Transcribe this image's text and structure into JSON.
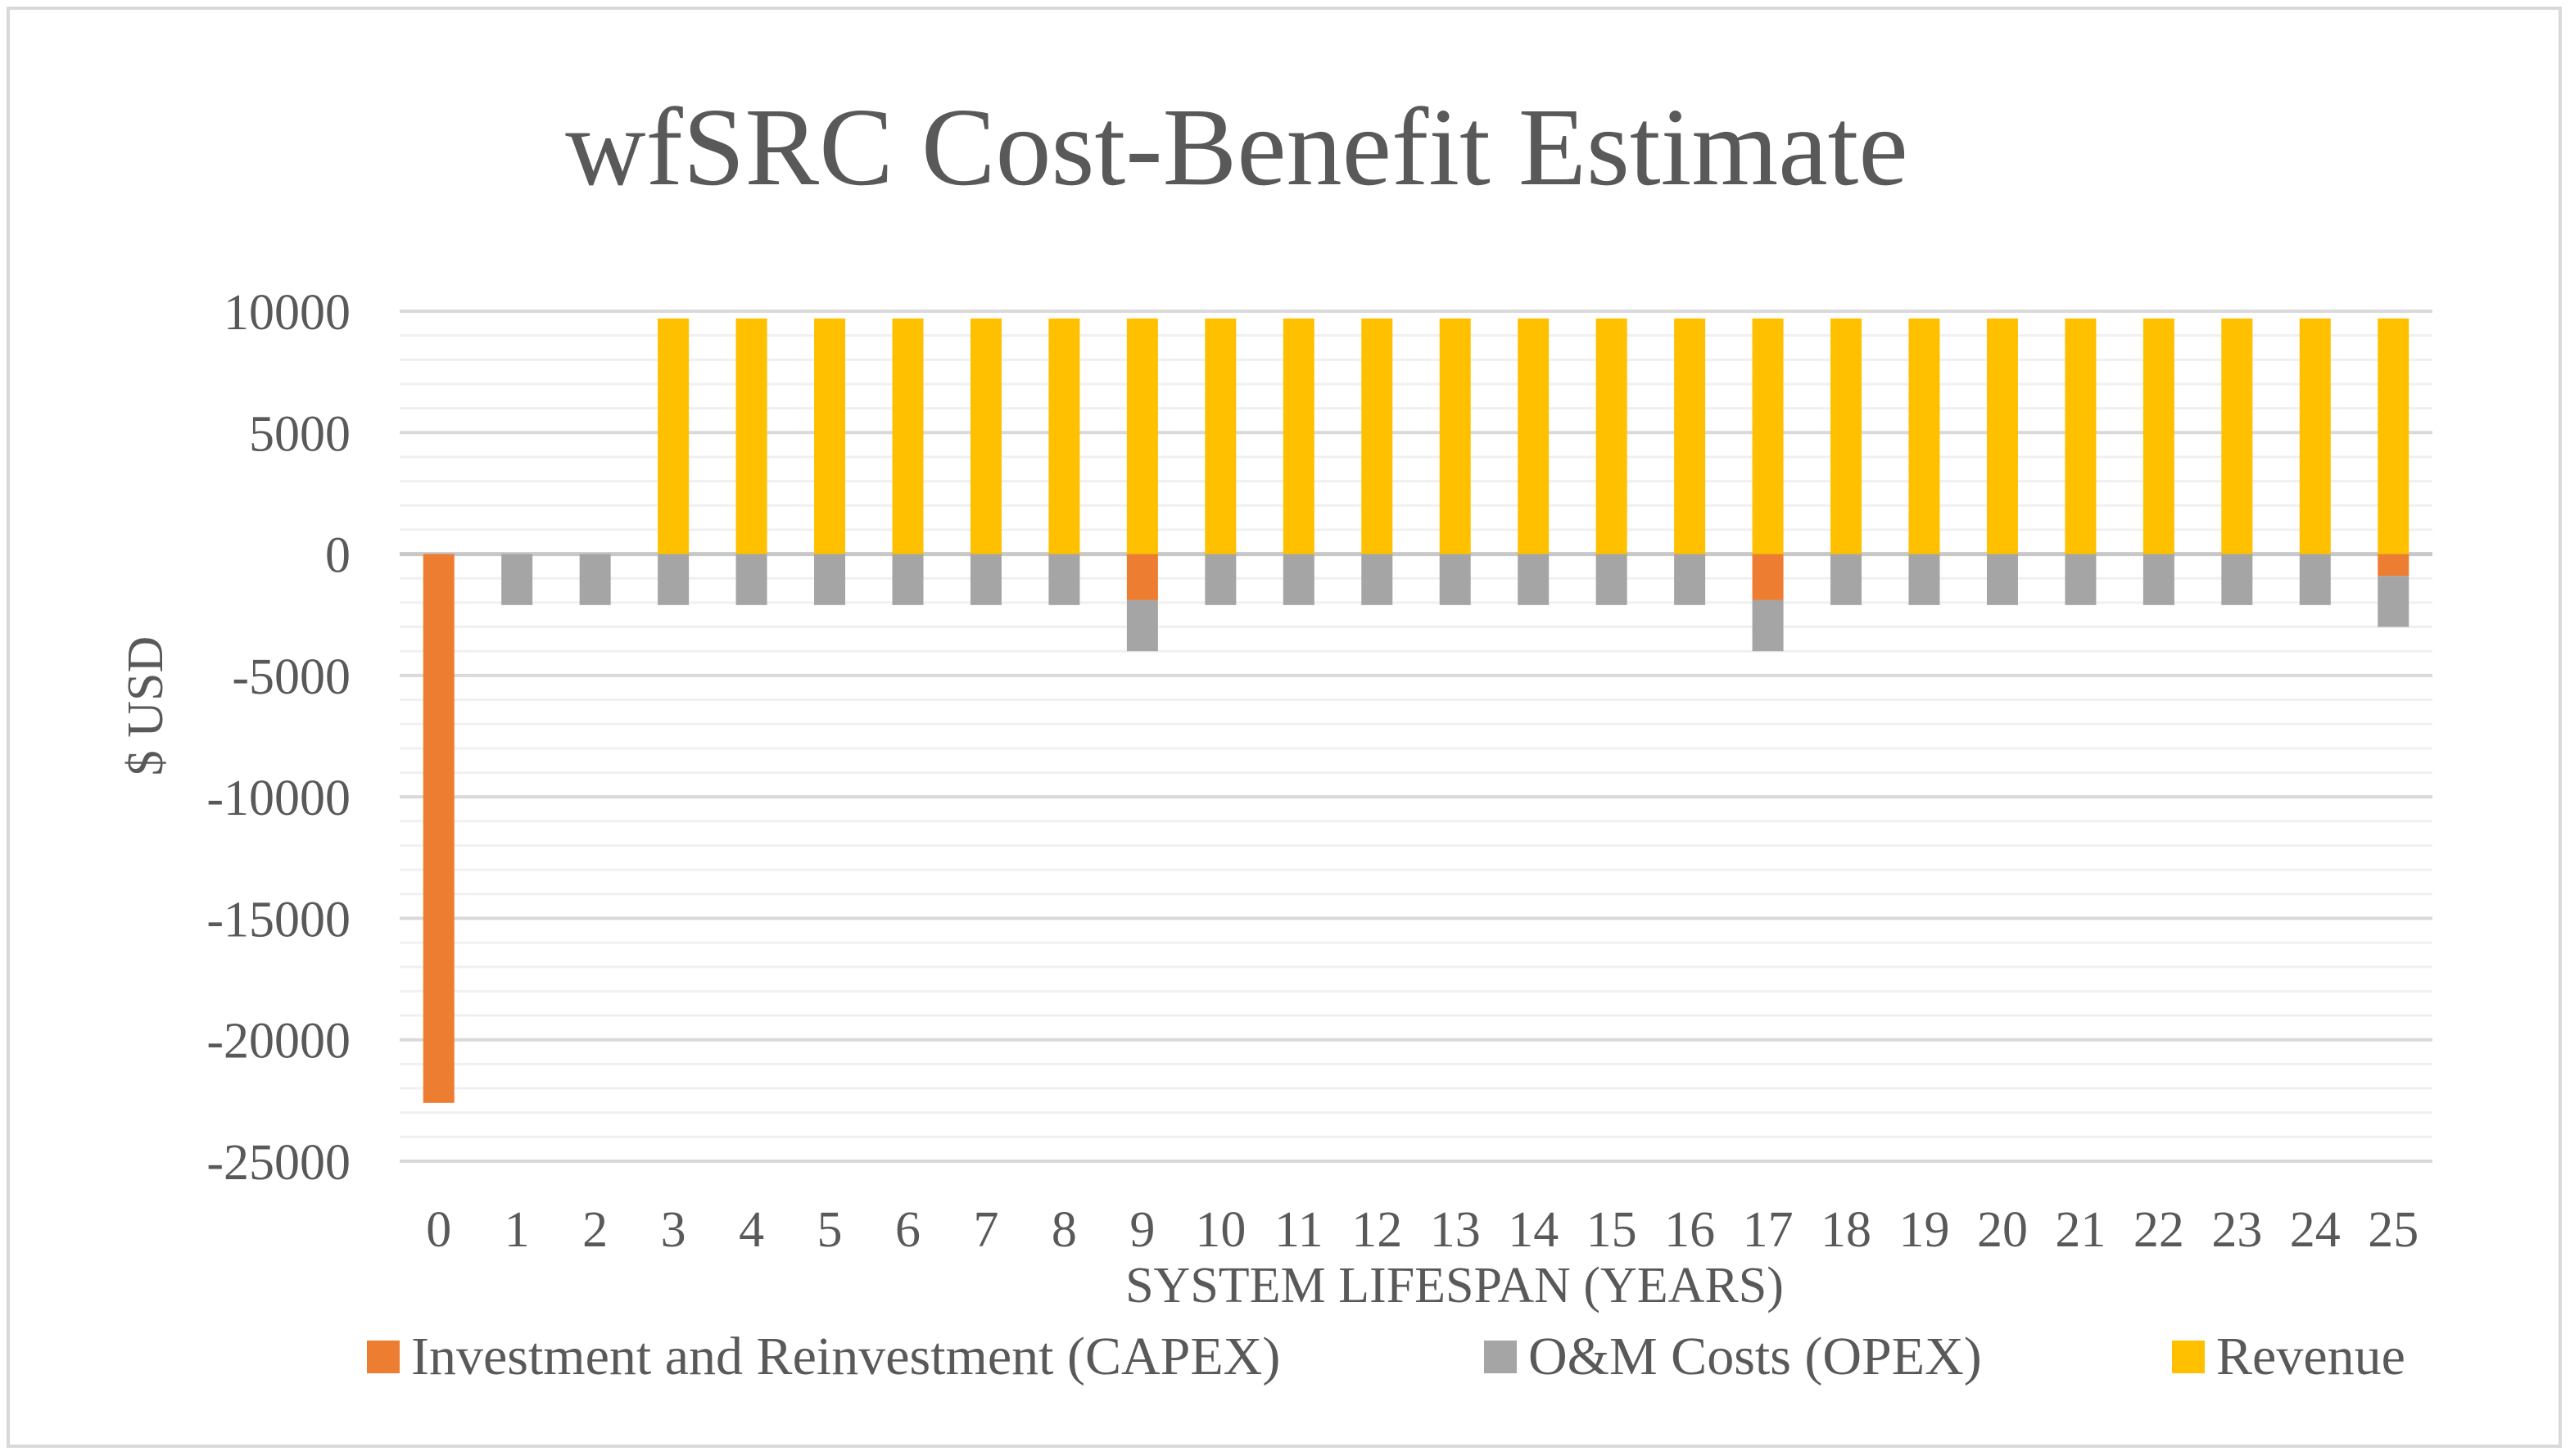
{
  "chart_data": {
    "type": "bar",
    "stacked": true,
    "title": "wfSRC Cost-Benefit Estimate",
    "xlabel": "SYSTEM LIFESPAN (YEARS)",
    "ylabel": "$ USD",
    "ylim": [
      -25000,
      10000
    ],
    "yticks": [
      10000,
      5000,
      0,
      -5000,
      -10000,
      -15000,
      -20000,
      -25000
    ],
    "ytick_labels": [
      "10000",
      "5000",
      "0",
      "-5000",
      "-10000",
      "-15000",
      "-20000",
      "-25000"
    ],
    "grid": true,
    "legend_position": "bottom",
    "categories": [
      "0",
      "1",
      "2",
      "3",
      "4",
      "5",
      "6",
      "7",
      "8",
      "9",
      "10",
      "11",
      "12",
      "13",
      "14",
      "15",
      "16",
      "17",
      "18",
      "19",
      "20",
      "21",
      "22",
      "23",
      "24",
      "25"
    ],
    "series": [
      {
        "name": "Investment and Reinvestment (CAPEX)",
        "color": "#ed7d31",
        "values": [
          -22600,
          0,
          0,
          0,
          0,
          0,
          0,
          0,
          0,
          -1900,
          0,
          0,
          0,
          0,
          0,
          0,
          0,
          -1900,
          0,
          0,
          0,
          0,
          0,
          0,
          0,
          -900
        ]
      },
      {
        "name": "O&M Costs (OPEX)",
        "color": "#a5a5a5",
        "values": [
          0,
          -2100,
          -2100,
          -2100,
          -2100,
          -2100,
          -2100,
          -2100,
          -2100,
          -2100,
          -2100,
          -2100,
          -2100,
          -2100,
          -2100,
          -2100,
          -2100,
          -2100,
          -2100,
          -2100,
          -2100,
          -2100,
          -2100,
          -2100,
          -2100,
          -2100
        ]
      },
      {
        "name": "Revenue",
        "color": "#ffc000",
        "values": [
          0,
          0,
          0,
          9700,
          9700,
          9700,
          9700,
          9700,
          9700,
          9700,
          9700,
          9700,
          9700,
          9700,
          9700,
          9700,
          9700,
          9700,
          9700,
          9700,
          9700,
          9700,
          9700,
          9700,
          9700,
          9700
        ]
      }
    ]
  }
}
